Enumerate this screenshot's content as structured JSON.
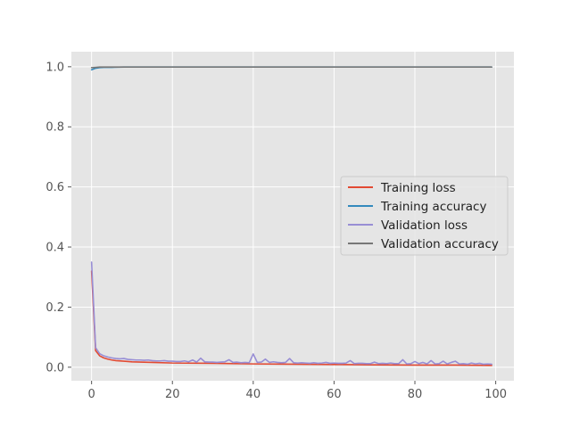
{
  "chart_data": {
    "type": "line",
    "style": "ggplot",
    "title": "",
    "xlabel": "",
    "ylabel": "",
    "xlim": [
      -5,
      104.5
    ],
    "ylim": [
      -0.045,
      1.05
    ],
    "xticks": [
      0,
      20,
      40,
      60,
      80,
      100
    ],
    "yticks": [
      0.0,
      0.2,
      0.4,
      0.6,
      0.8,
      1.0
    ],
    "xtick_labels": [
      "0",
      "20",
      "40",
      "60",
      "80",
      "100"
    ],
    "ytick_labels": [
      "0.0",
      "0.2",
      "0.4",
      "0.6",
      "0.8",
      "1.0"
    ],
    "grid": true,
    "legend_location": "center-right",
    "colors": {
      "background": "#E5E5E5",
      "grid": "#FFFFFF",
      "tick": "#555555"
    },
    "series": [
      {
        "name": "Training loss",
        "color": "#E24A33",
        "x": [
          0,
          1,
          2,
          3,
          4,
          5,
          6,
          8,
          10,
          15,
          20,
          30,
          40,
          50,
          60,
          70,
          80,
          90,
          99
        ],
        "y": [
          0.32,
          0.055,
          0.038,
          0.031,
          0.027,
          0.024,
          0.022,
          0.02,
          0.018,
          0.016,
          0.014,
          0.013,
          0.011,
          0.01,
          0.009,
          0.008,
          0.007,
          0.007,
          0.006
        ]
      },
      {
        "name": "Training accuracy",
        "color": "#348ABD",
        "x": [
          0,
          1,
          2,
          3,
          5,
          8,
          10,
          12,
          15,
          20,
          25,
          30,
          40,
          45,
          50,
          55,
          60,
          65,
          70,
          75,
          80,
          85,
          90,
          95,
          99
        ],
        "y": [
          0.99,
          0.995,
          0.997,
          0.998,
          0.998,
          0.999,
          0.999,
          0.999,
          0.999,
          0.999,
          0.999,
          0.999,
          0.999,
          0.999,
          0.999,
          0.999,
          0.999,
          0.999,
          0.999,
          0.999,
          0.999,
          0.999,
          0.999,
          0.999,
          0.999
        ]
      },
      {
        "name": "Validation loss",
        "color": "#988ED5",
        "x": [
          0,
          1,
          2,
          3,
          4,
          5,
          6,
          7,
          8,
          9,
          10,
          11,
          12,
          13,
          14,
          15,
          16,
          17,
          18,
          19,
          20,
          21,
          22,
          23,
          24,
          25,
          26,
          27,
          28,
          29,
          30,
          31,
          32,
          33,
          34,
          35,
          36,
          37,
          38,
          39,
          40,
          41,
          42,
          43,
          44,
          45,
          46,
          47,
          48,
          49,
          50,
          51,
          52,
          53,
          54,
          55,
          56,
          57,
          58,
          59,
          60,
          61,
          62,
          63,
          64,
          65,
          66,
          67,
          68,
          69,
          70,
          71,
          72,
          73,
          74,
          75,
          76,
          77,
          78,
          79,
          80,
          81,
          82,
          83,
          84,
          85,
          86,
          87,
          88,
          89,
          90,
          91,
          92,
          93,
          94,
          95,
          96,
          97,
          98,
          99
        ],
        "y": [
          0.35,
          0.065,
          0.045,
          0.038,
          0.034,
          0.031,
          0.029,
          0.028,
          0.029,
          0.026,
          0.025,
          0.024,
          0.024,
          0.023,
          0.024,
          0.022,
          0.021,
          0.021,
          0.022,
          0.02,
          0.02,
          0.019,
          0.019,
          0.021,
          0.018,
          0.024,
          0.017,
          0.03,
          0.018,
          0.017,
          0.017,
          0.016,
          0.017,
          0.018,
          0.025,
          0.016,
          0.017,
          0.015,
          0.016,
          0.015,
          0.044,
          0.016,
          0.017,
          0.027,
          0.016,
          0.018,
          0.016,
          0.015,
          0.016,
          0.029,
          0.015,
          0.014,
          0.015,
          0.014,
          0.013,
          0.015,
          0.013,
          0.014,
          0.016,
          0.013,
          0.014,
          0.013,
          0.013,
          0.014,
          0.022,
          0.012,
          0.013,
          0.013,
          0.012,
          0.012,
          0.017,
          0.012,
          0.013,
          0.012,
          0.014,
          0.012,
          0.012,
          0.025,
          0.011,
          0.012,
          0.019,
          0.012,
          0.016,
          0.011,
          0.022,
          0.011,
          0.012,
          0.02,
          0.011,
          0.016,
          0.02,
          0.011,
          0.012,
          0.01,
          0.014,
          0.011,
          0.013,
          0.01,
          0.011,
          0.01
        ]
      },
      {
        "name": "Validation accuracy",
        "color": "#777777",
        "x": [
          0,
          1,
          2,
          3,
          5,
          8,
          10,
          12,
          15,
          20,
          25,
          30,
          40,
          45,
          50,
          55,
          60,
          65,
          70,
          75,
          80,
          85,
          90,
          95,
          99
        ],
        "y": [
          0.997,
          0.998,
          0.999,
          0.999,
          0.999,
          0.999,
          0.999,
          0.999,
          0.999,
          0.999,
          0.999,
          0.999,
          0.999,
          0.999,
          0.999,
          0.999,
          0.999,
          0.999,
          0.999,
          0.999,
          0.999,
          0.999,
          0.999,
          0.999,
          0.999
        ]
      }
    ]
  }
}
